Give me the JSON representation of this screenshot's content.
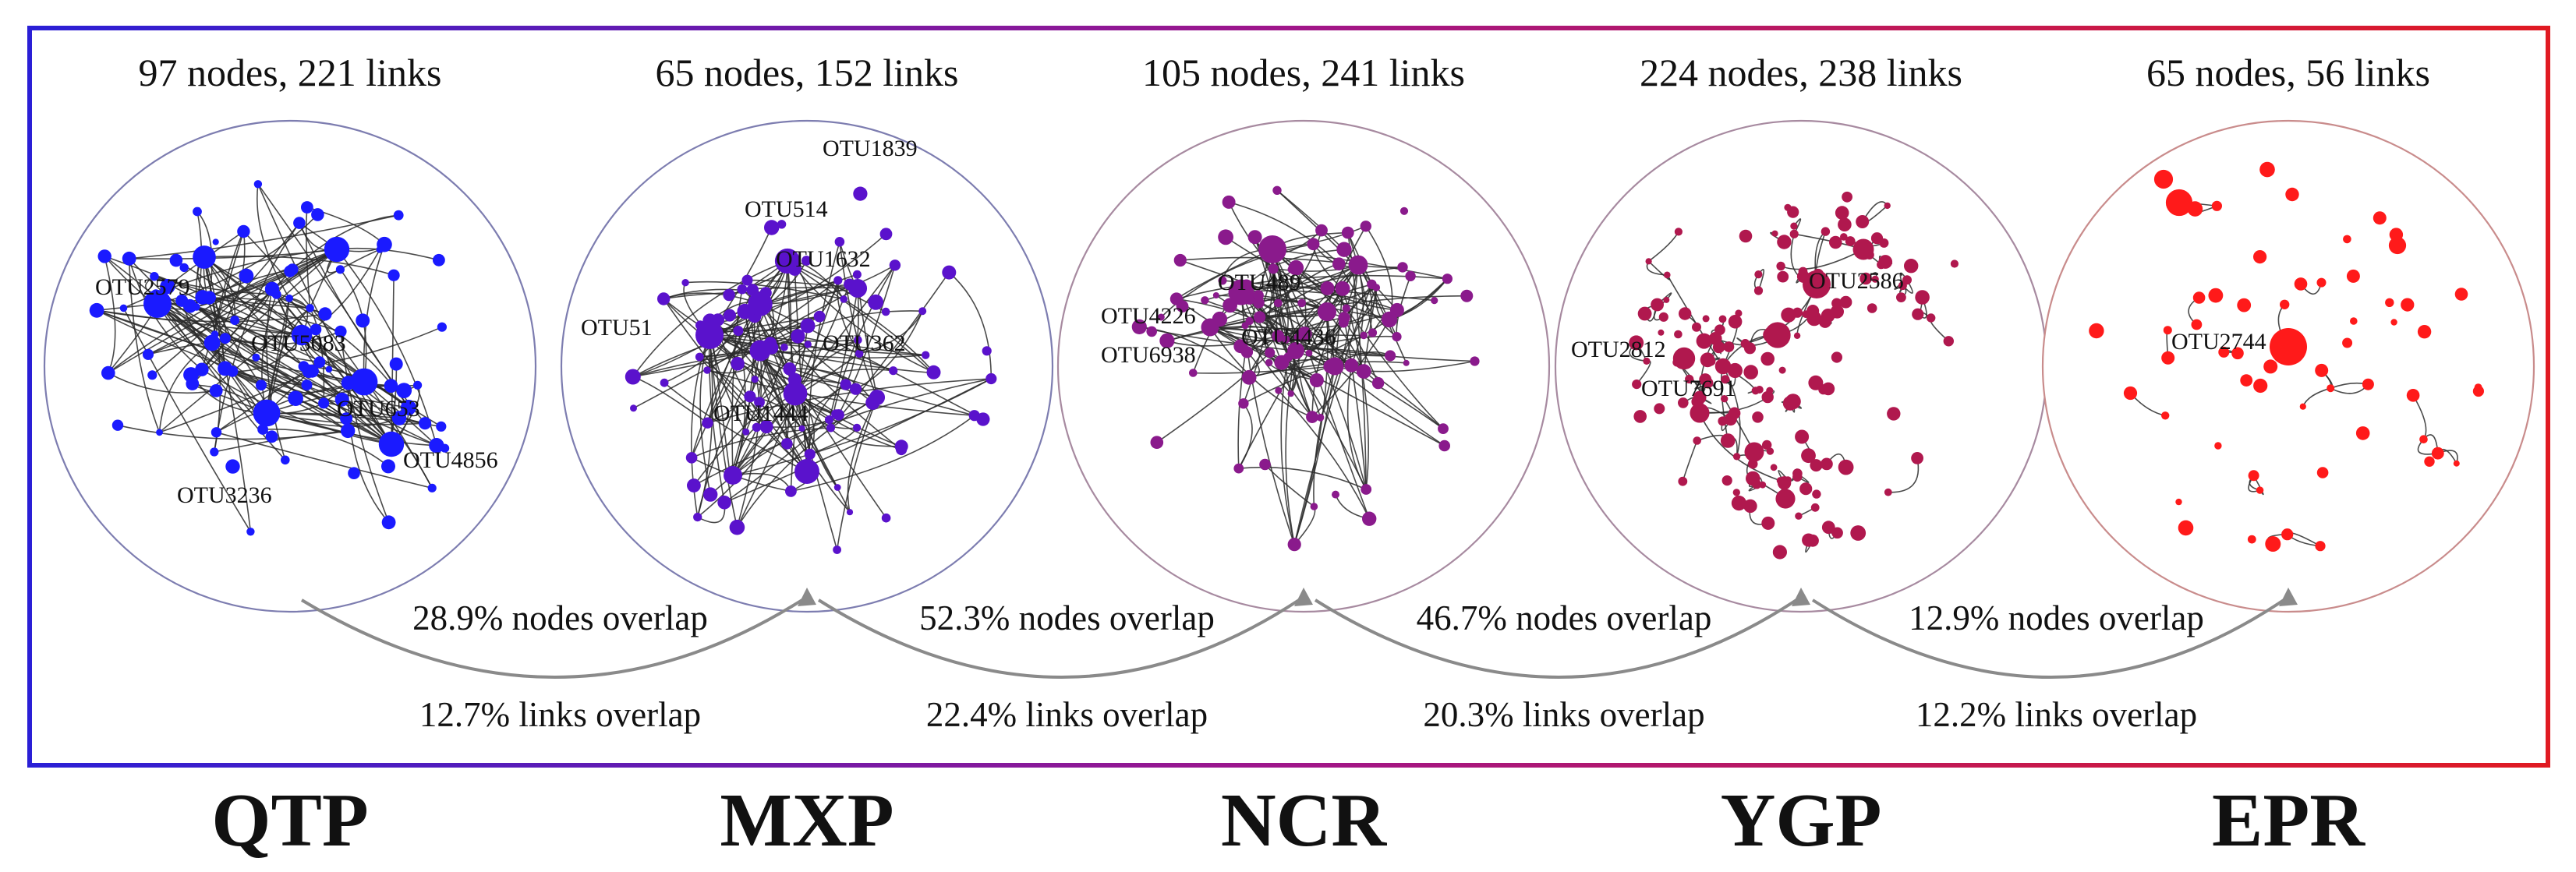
{
  "networks": [
    {
      "site": "QTP",
      "header": "97 nodes, 221 links",
      "color": "#1a1aff",
      "otu_labels": [
        "OTU2579",
        "OTU5083",
        "OTU653",
        "OTU4856",
        "OTU3236"
      ]
    },
    {
      "site": "MXP",
      "header": "65 nodes, 152 links",
      "color": "#5a12cc",
      "otu_labels": [
        "OTU1839",
        "OTU514",
        "OTU1632",
        "OTU51",
        "OTU362",
        "OTU1444"
      ]
    },
    {
      "site": "NCR",
      "header": "105 nodes, 241 links",
      "color": "#8a1a8c",
      "otu_labels": [
        "OTU489",
        "OTU4226",
        "OTU4436",
        "OTU6938"
      ]
    },
    {
      "site": "YGP",
      "header": "224 nodes, 238 links",
      "color": "#b0184e",
      "otu_labels": [
        "OTU2586",
        "OTU2812",
        "OTU7691"
      ]
    },
    {
      "site": "EPR",
      "header": "65 nodes, 56 links",
      "color": "#ff1a1a",
      "otu_labels": [
        "OTU2744"
      ]
    }
  ],
  "overlaps": [
    {
      "nodes": "28.9% nodes overlap",
      "links": "12.7% links overlap"
    },
    {
      "nodes": "52.3% nodes overlap",
      "links": "22.4% links overlap"
    },
    {
      "nodes": "46.7% nodes overlap",
      "links": "20.3% links overlap"
    },
    {
      "nodes": "12.9% nodes overlap",
      "links": "12.2% links overlap"
    }
  ]
}
